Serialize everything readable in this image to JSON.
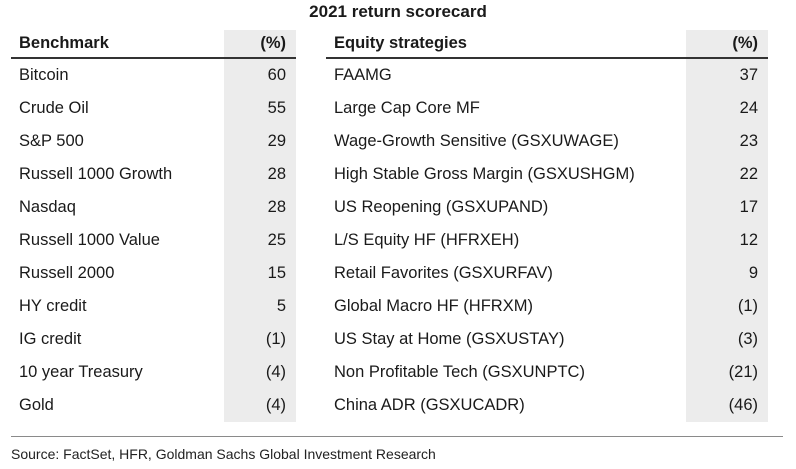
{
  "title": "2021 return scorecard",
  "source": "Source: FactSet, HFR, Goldman Sachs Global Investment Research",
  "chart_data": [
    {
      "type": "table",
      "columns": [
        "Benchmark",
        "(%)"
      ],
      "rows": [
        {
          "name": "Bitcoin",
          "value": "60"
        },
        {
          "name": "Crude Oil",
          "value": "55"
        },
        {
          "name": "S&P 500",
          "value": "29"
        },
        {
          "name": "Russell 1000 Growth",
          "value": "28"
        },
        {
          "name": "Nasdaq",
          "value": "28"
        },
        {
          "name": "Russell 1000 Value",
          "value": "25"
        },
        {
          "name": "Russell 2000",
          "value": "15"
        },
        {
          "name": "HY credit",
          "value": "5"
        },
        {
          "name": "IG credit",
          "value": "(1)"
        },
        {
          "name": "10 year Treasury",
          "value": "(4)"
        },
        {
          "name": "Gold",
          "value": "(4)"
        }
      ]
    },
    {
      "type": "table",
      "columns": [
        "Equity strategies",
        "(%)"
      ],
      "rows": [
        {
          "name": "FAAMG",
          "value": "37"
        },
        {
          "name": "Large Cap Core MF",
          "value": "24"
        },
        {
          "name": "Wage-Growth Sensitive (GSXUWAGE)",
          "value": "23"
        },
        {
          "name": "High Stable Gross Margin (GSXUSHGM)",
          "value": "22"
        },
        {
          "name": "US Reopening (GSXUPAND)",
          "value": "17"
        },
        {
          "name": "L/S Equity HF (HFRXEH)",
          "value": "12"
        },
        {
          "name": "Retail Favorites (GSXURFAV)",
          "value": "9"
        },
        {
          "name": "Global Macro HF (HFRXM)",
          "value": "(1)"
        },
        {
          "name": "US Stay at Home (GSXUSTAY)",
          "value": "(3)"
        },
        {
          "name": "Non Profitable Tech (GSXUNPTC)",
          "value": "(21)"
        },
        {
          "name": "China ADR (GSXUCADR)",
          "value": "(46)"
        }
      ]
    }
  ]
}
